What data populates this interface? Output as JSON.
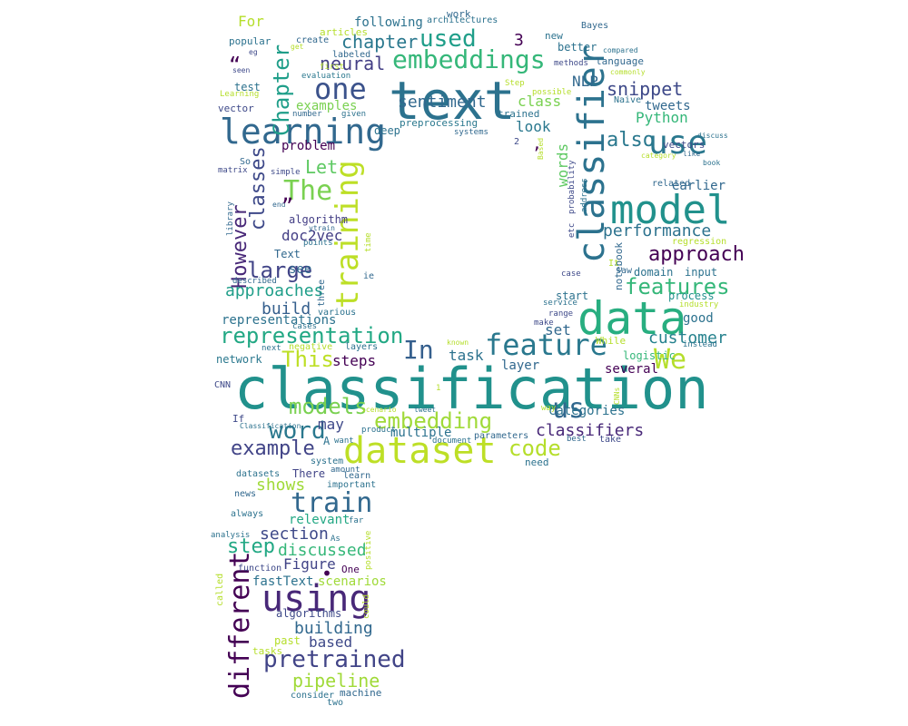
{
  "palette": {
    "dark_purple": "#440154",
    "indigo": "#472d7b",
    "blue": "#3b528b",
    "steel_blue": "#2c728e",
    "teal": "#21918c",
    "green_teal": "#28ae80",
    "green": "#5ec962",
    "light_green": "#addc30",
    "yellow": "#fde725"
  },
  "words": [
    {
      "text": "classification",
      "color": "#21918c"
    },
    {
      "text": "text",
      "color": "#2c728e"
    },
    {
      "text": "data",
      "color": "#28ae80"
    },
    {
      "text": "dataset",
      "color": "#bddf26"
    },
    {
      "text": "model",
      "color": "#21918c"
    },
    {
      "text": "learning",
      "color": "#31688e"
    },
    {
      "text": "classifier",
      "color": "#2c728e"
    },
    {
      "text": "using",
      "color": "#482878"
    },
    {
      "text": "training",
      "color": "#bddf26"
    },
    {
      "text": "feature",
      "color": "#2a788e"
    },
    {
      "text": "train",
      "color": "#31688e"
    },
    {
      "text": "embeddings",
      "color": "#35b779"
    },
    {
      "text": "one",
      "color": "#3b528b"
    },
    {
      "text": "use",
      "color": "#2a788e"
    },
    {
      "text": "different",
      "color": "#440154"
    },
    {
      "text": "We",
      "color": "#b5de2b"
    },
    {
      "text": "The",
      "color": "#7ad151"
    },
    {
      "text": "pretrained",
      "color": "#414487"
    },
    {
      "text": "representation",
      "color": "#22a884"
    },
    {
      "text": "embedding",
      "color": "#a0da39"
    },
    {
      "text": "word",
      "color": "#2a788e"
    },
    {
      "text": "code",
      "color": "#b5de2b"
    },
    {
      "text": "In",
      "color": "#355f8d"
    },
    {
      "text": "us",
      "color": "#31688e"
    },
    {
      "text": "models",
      "color": "#7ad151"
    },
    {
      "text": "used",
      "color": "#1f9e89"
    },
    {
      "text": "features",
      "color": "#35b779"
    },
    {
      "text": "approach",
      "color": "#440154"
    },
    {
      "text": "large",
      "color": "#414487"
    },
    {
      "text": "Chapter",
      "color": "#1f9e89"
    },
    {
      "text": "also",
      "color": "#2a788e"
    },
    {
      "text": "This",
      "color": "#bddf26"
    },
    {
      "text": "classes",
      "color": "#3e4989"
    },
    {
      "text": "example",
      "color": "#414487"
    },
    {
      "text": "step",
      "color": "#22a884"
    },
    {
      "text": "However",
      "color": "#482878"
    },
    {
      "text": "neural",
      "color": "#433e85"
    },
    {
      "text": "chapter",
      "color": "#2a788e"
    },
    {
      "text": "sentiment",
      "color": "#31688e"
    },
    {
      "text": "snippet",
      "color": "#3e4989"
    },
    {
      "text": "performance",
      "color": "#2c728e"
    },
    {
      "text": "classifiers",
      "color": "#482878"
    },
    {
      "text": "customer",
      "color": "#26828e"
    },
    {
      "text": "Let",
      "color": "#5ec962"
    },
    {
      "text": "pipeline",
      "color": "#a0da39"
    },
    {
      "text": "building",
      "color": "#31688e"
    },
    {
      "text": "section",
      "color": "#3e4989"
    },
    {
      "text": "discussed",
      "color": "#35b779"
    },
    {
      "text": "approaches",
      "color": "#1f9e89"
    },
    {
      "text": "build",
      "color": "#355f8d"
    },
    {
      "text": "representations",
      "color": "#2c728e"
    },
    {
      "text": "doc2vec",
      "color": "#433e85"
    },
    {
      "text": "shows",
      "color": "#a0da39"
    },
    {
      "text": "steps",
      "color": "#440154"
    },
    {
      "text": "task",
      "color": "#2c728e"
    },
    {
      "text": "Figure",
      "color": "#414487"
    },
    {
      "text": "based",
      "color": "#3e4989"
    },
    {
      "text": "examples",
      "color": "#7ad151"
    },
    {
      "text": "NLP",
      "color": "#31688e"
    },
    {
      "text": "Python",
      "color": "#35b779"
    },
    {
      "text": "may",
      "color": "#3e4989"
    },
    {
      "text": "see",
      "color": "#31688e"
    },
    {
      "text": "set",
      "color": "#31688e"
    },
    {
      "text": "look",
      "color": "#2a788e"
    },
    {
      "text": "class",
      "color": "#7ad151"
    },
    {
      "text": "For",
      "color": "#b5de2b"
    },
    {
      "text": "words",
      "color": "#5ec962"
    },
    {
      "text": "categories",
      "color": "#2c728e"
    },
    {
      "text": "problem",
      "color": "#440154"
    },
    {
      "text": "multiple",
      "color": "#2c728e"
    },
    {
      "text": "network",
      "color": "#2a788e"
    },
    {
      "text": "fastText",
      "color": "#2c728e"
    },
    {
      "text": "scenarios",
      "color": "#a0da39"
    },
    {
      "text": "relevant",
      "color": "#22a884"
    },
    {
      "text": "algorithm",
      "color": "#433e85"
    },
    {
      "text": "algorithms",
      "color": "#3e4989"
    },
    {
      "text": "past",
      "color": "#b5de2b"
    },
    {
      "text": "tweets",
      "color": "#31688e"
    },
    {
      "text": "following",
      "color": "#2c728e"
    },
    {
      "text": "earlier",
      "color": "#31688e"
    },
    {
      "text": "input",
      "color": "#2c728e"
    },
    {
      "text": "good",
      "color": "#2c728e"
    },
    {
      "text": "several",
      "color": "#440154"
    },
    {
      "text": "logistic",
      "color": "#35b779"
    },
    {
      "text": "layer",
      "color": "#31688e"
    },
    {
      "text": "process",
      "color": "#21918c"
    },
    {
      "text": "domain",
      "color": "#2c728e"
    },
    {
      "text": "start",
      "color": "#2c728e"
    },
    {
      "text": "Text",
      "color": "#31688e"
    },
    {
      "text": "There",
      "color": "#414487"
    },
    {
      "text": "test",
      "color": "#2c728e"
    },
    {
      "text": "trained",
      "color": "#2c728e"
    },
    {
      "text": "preprocessing",
      "color": "#2a788e"
    },
    {
      "text": "deep",
      "color": "#2c728e"
    },
    {
      "text": "language",
      "color": "#31688e"
    },
    {
      "text": "vectors",
      "color": "#3e4989"
    },
    {
      "text": "better",
      "color": "#2c728e"
    },
    {
      "text": "new",
      "color": "#2c728e"
    },
    {
      "text": "Bayes",
      "color": "#31688e"
    },
    {
      "text": "vector",
      "color": "#3e4989"
    },
    {
      "text": "popular",
      "color": "#2c728e"
    },
    {
      "text": "articles",
      "color": "#b5de2b"
    },
    {
      "text": "labeled",
      "color": "#31688e"
    },
    {
      "text": "work",
      "color": "#31688e"
    },
    {
      "text": "architectures",
      "color": "#2c728e"
    },
    {
      "text": "create",
      "color": "#31688e"
    },
    {
      "text": "evaluation",
      "color": "#2a788e"
    },
    {
      "text": "machine",
      "color": "#31688e"
    },
    {
      "text": "consider",
      "color": "#2c728e"
    },
    {
      "text": "two",
      "color": "#2c728e"
    },
    {
      "text": "tasks",
      "color": "#b5de2b"
    },
    {
      "text": "datasets",
      "color": "#2c728e"
    },
    {
      "text": "news",
      "color": "#31688e"
    },
    {
      "text": "important",
      "color": "#2c728e"
    },
    {
      "text": "learn",
      "color": "#31688e"
    },
    {
      "text": "always",
      "color": "#2c728e"
    },
    {
      "text": "analysis",
      "color": "#2c728e"
    },
    {
      "text": "function",
      "color": "#3e4989"
    },
    {
      "text": "called",
      "color": "#b5de2b"
    },
    {
      "text": "One",
      "color": "#440154"
    },
    {
      "text": "need",
      "color": "#2c728e"
    },
    {
      "text": "take",
      "color": "#3e4989"
    },
    {
      "text": "best",
      "color": "#31688e"
    },
    {
      "text": "parameters",
      "color": "#31688e"
    },
    {
      "text": "system",
      "color": "#2c728e"
    },
    {
      "text": "product",
      "color": "#2c728e"
    },
    {
      "text": "want",
      "color": "#2c728e"
    },
    {
      "text": "amount",
      "color": "#31688e"
    },
    {
      "text": "If",
      "color": "#3e4989"
    },
    {
      "text": "CNN",
      "color": "#3e4989"
    },
    {
      "text": "Classification",
      "color": "#2c728e"
    },
    {
      "text": "A",
      "color": "#2c728e"
    },
    {
      "text": "layers",
      "color": "#2c728e"
    },
    {
      "text": "negative",
      "color": "#b5de2b"
    },
    {
      "text": "next",
      "color": "#2c728e"
    },
    {
      "text": "various",
      "color": "#2c728e"
    },
    {
      "text": "cases",
      "color": "#2c728e"
    },
    {
      "text": "three",
      "color": "#31688e"
    },
    {
      "text": "described",
      "color": "#31688e"
    },
    {
      "text": "points",
      "color": "#2c728e"
    },
    {
      "text": "ytrain",
      "color": "#31688e"
    },
    {
      "text": "end",
      "color": "#31688e"
    },
    {
      "text": "library",
      "color": "#31688e"
    },
    {
      "text": "time",
      "color": "#b5de2b"
    },
    {
      "text": "ie",
      "color": "#31688e"
    },
    {
      "text": "simple",
      "color": "#3e4989"
    },
    {
      "text": "matrix",
      "color": "#3e4989"
    },
    {
      "text": "So",
      "color": "#31688e"
    },
    {
      "text": "2",
      "color": "#3e4989"
    },
    {
      "text": "3",
      "color": "#440154"
    },
    {
      "text": "systems",
      "color": "#31688e"
    },
    {
      "text": "number",
      "color": "#31688e"
    },
    {
      "text": "given",
      "color": "#2c728e"
    },
    {
      "text": "first",
      "color": "#b5de2b"
    },
    {
      "text": "seen",
      "color": "#3e4989"
    },
    {
      "text": "eg",
      "color": "#3e4989"
    },
    {
      "text": "get",
      "color": "#b5de2b"
    },
    {
      "text": "Step",
      "color": "#b5de2b"
    },
    {
      "text": "possible",
      "color": "#b5de2b"
    },
    {
      "text": "methods",
      "color": "#3e4989"
    },
    {
      "text": "compared",
      "color": "#2c728e"
    },
    {
      "text": "commonly",
      "color": "#b5de2b"
    },
    {
      "text": "Naive",
      "color": "#2c728e"
    },
    {
      "text": "discuss",
      "color": "#2c728e"
    },
    {
      "text": "like",
      "color": "#31688e"
    },
    {
      "text": "book",
      "color": "#2c728e"
    },
    {
      "text": "category",
      "color": "#b5de2b"
    },
    {
      "text": "related",
      "color": "#31688e"
    },
    {
      "text": "etc",
      "color": "#3e4989"
    },
    {
      "text": "probability",
      "color": "#3e4989"
    },
    {
      "text": "address",
      "color": "#2c728e"
    },
    {
      "text": "notebook",
      "color": "#31688e"
    },
    {
      "text": "regression",
      "color": "#b5de2b"
    },
    {
      "text": "It",
      "color": "#b5de2b"
    },
    {
      "text": "saw",
      "color": "#31688e"
    },
    {
      "text": "case",
      "color": "#3e4989"
    },
    {
      "text": "service",
      "color": "#2c728e"
    },
    {
      "text": "industry",
      "color": "#b5de2b"
    },
    {
      "text": "range",
      "color": "#3e4989"
    },
    {
      "text": "make",
      "color": "#3e4989"
    },
    {
      "text": "instead",
      "color": "#2c728e"
    },
    {
      "text": "While",
      "color": "#b5de2b"
    },
    {
      "text": "known",
      "color": "#b5de2b"
    },
    {
      "text": "document",
      "color": "#2c728e"
    },
    {
      "text": "way",
      "color": "#b5de2b"
    },
    {
      "text": "CNNs",
      "color": "#b5de2b"
    },
    {
      "text": "1",
      "color": "#b5de2b"
    },
    {
      "text": "scenario",
      "color": "#b5de2b"
    },
    {
      "text": "tweet",
      "color": "#2c728e"
    },
    {
      "text": "positive",
      "color": "#b5de2b"
    },
    {
      "text": "far",
      "color": "#2c728e"
    },
    {
      "text": "As",
      "color": "#2c728e"
    },
    {
      "text": "could",
      "color": "#b5de2b"
    },
    {
      "text": "Learning",
      "color": "#b5de2b"
    },
    {
      "text": "Based",
      "color": "#b5de2b"
    },
    {
      "text": "“",
      "color": "#440154"
    },
    {
      "text": "„",
      "color": "#440154"
    },
    {
      "text": "•",
      "color": "#440154"
    },
    {
      "text": ",",
      "color": "#440154"
    }
  ]
}
